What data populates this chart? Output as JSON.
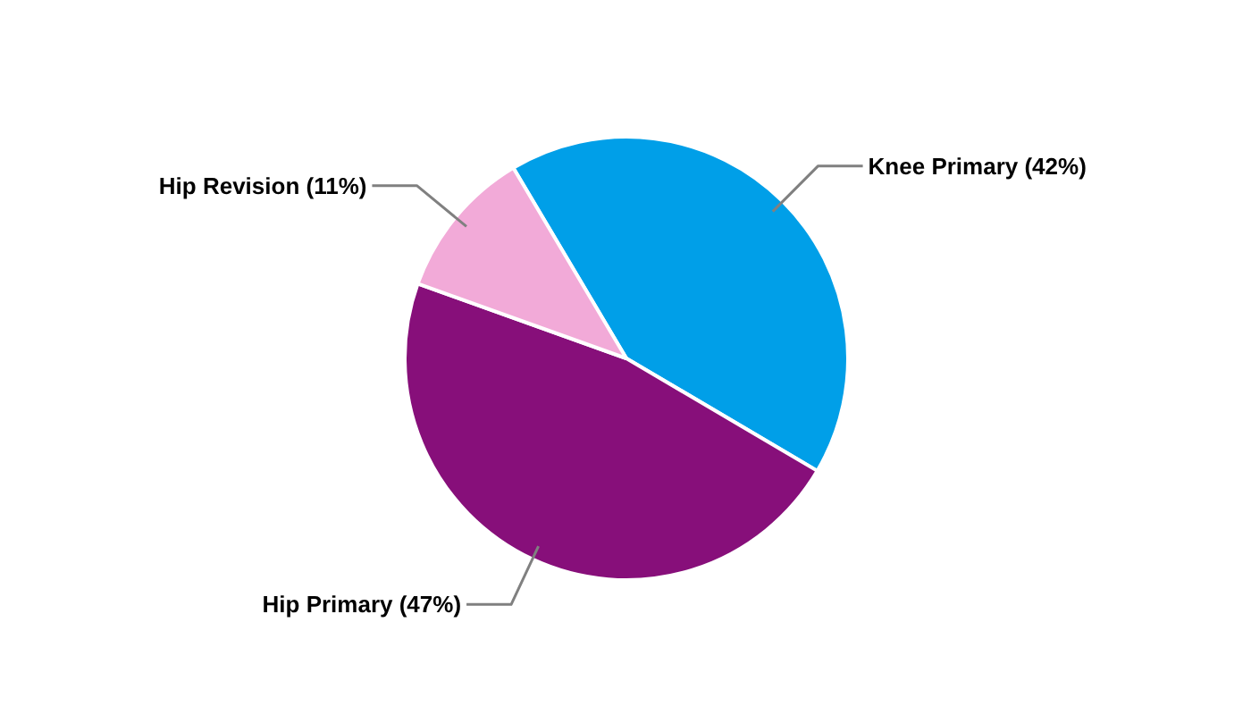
{
  "chart_data": {
    "type": "pie",
    "categories": [
      "Knee Primary (42%)",
      "Hip Primary (47%)",
      "Hip Revision (11%)"
    ],
    "values": [
      42,
      47,
      11
    ],
    "colors": [
      "#009fe8",
      "#870f7a",
      "#f2aad8"
    ]
  }
}
